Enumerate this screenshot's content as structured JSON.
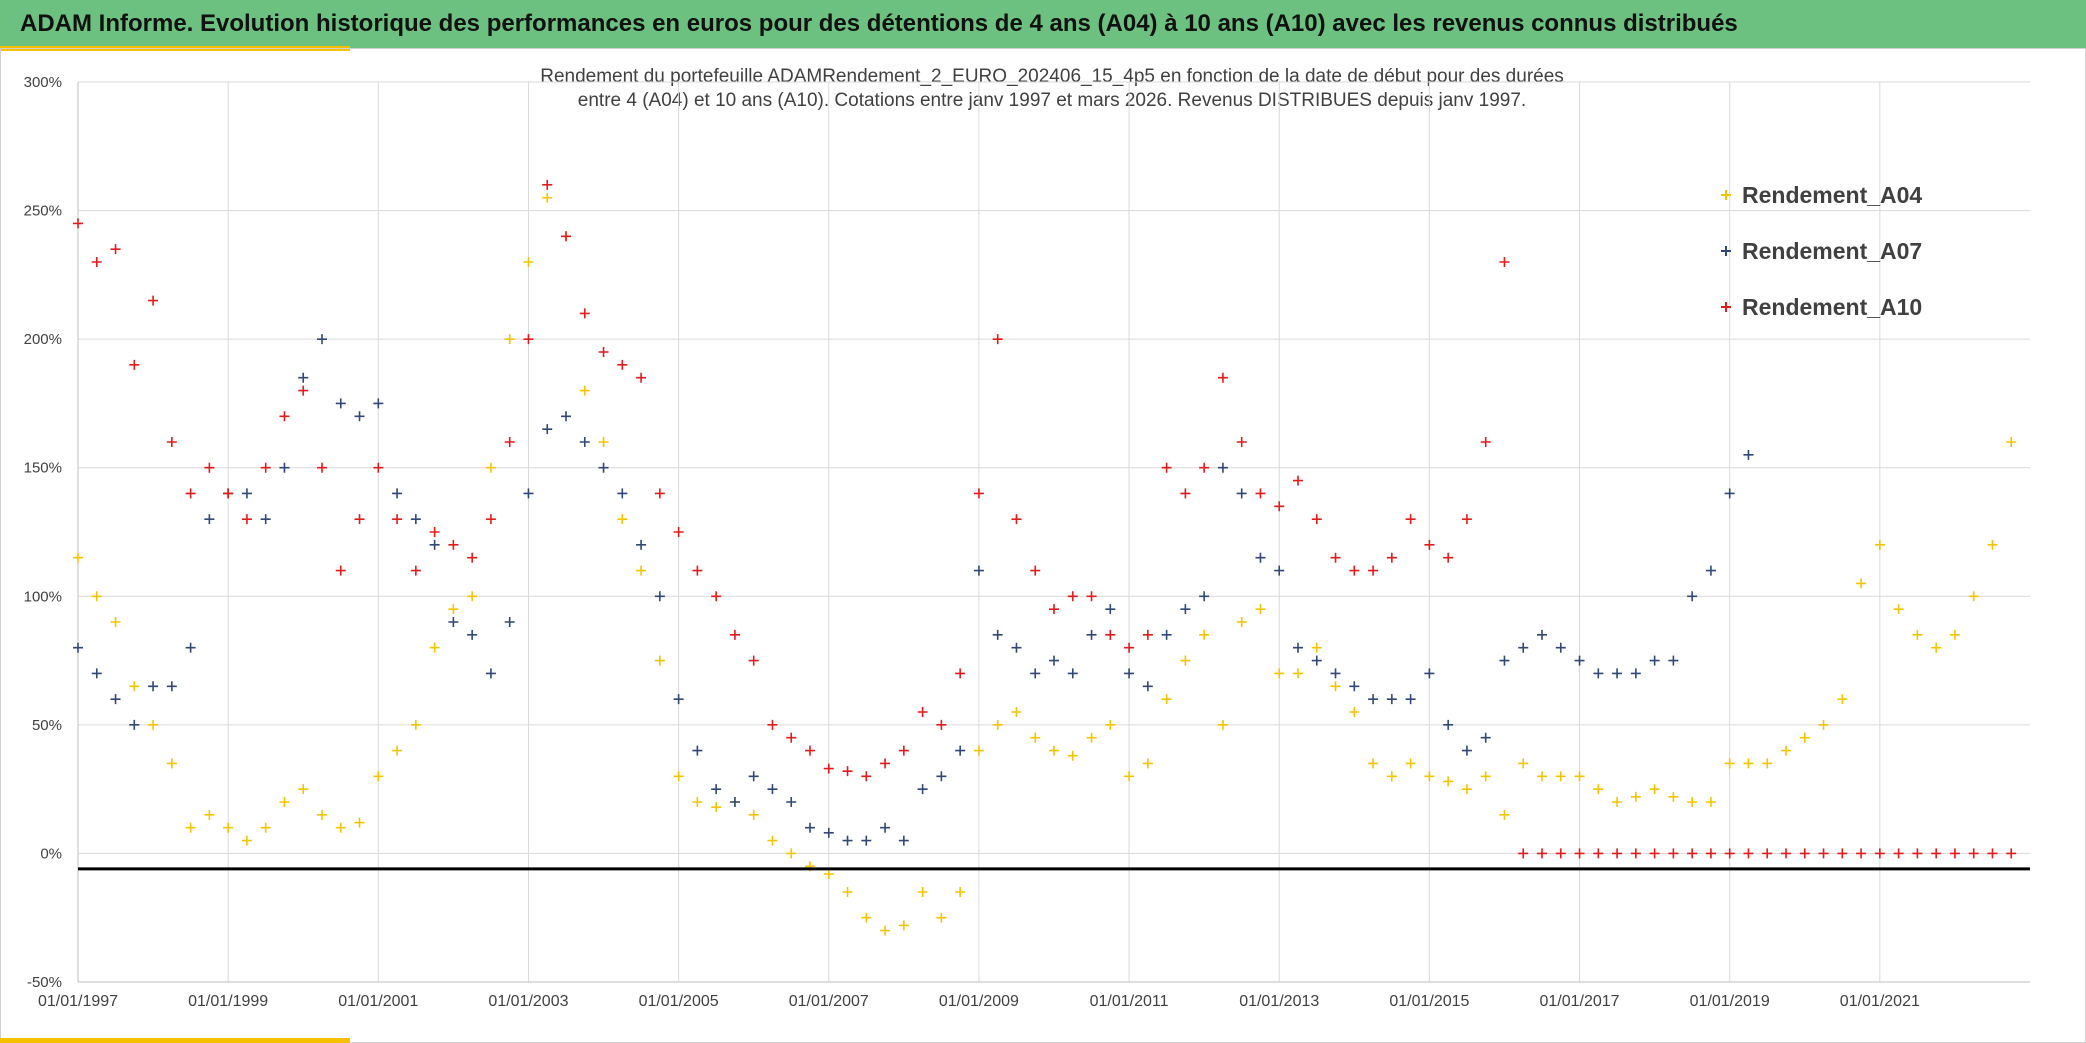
{
  "header": {
    "title": "ADAM Informe. Evolution historique des performances en euros pour des détentions de 4 ans (A04) à 10 ans (A10) avec les revenus connus distribués"
  },
  "colors": {
    "banner": "#6cc080",
    "accent": "#f5c000",
    "a04": "#f5c400",
    "a07": "#2f4877",
    "a10": "#e31b1b",
    "grid": "#d9d9d9",
    "text": "#404040"
  },
  "chart_data": {
    "type": "scatter",
    "title_line1": "Rendement du portefeuille ADAMRendement_2_EURO_202406_15_4p5  en fonction de la date de début pour des durées",
    "title_line2": "entre 4 (A04) et 10 ans (A10). Cotations entre janv 1997 et mars 2026. Revenus DISTRIBUES depuis janv 1997.",
    "xlabel": "",
    "ylabel": "",
    "xlim": [
      1997.0,
      2023.0
    ],
    "ylim": [
      -50,
      300
    ],
    "y_ticks": [
      -50,
      0,
      50,
      100,
      150,
      200,
      250,
      300
    ],
    "y_tick_labels": [
      "-50%",
      "0%",
      "50%",
      "100%",
      "150%",
      "200%",
      "250%",
      "300%"
    ],
    "x_ticks": [
      1997,
      1999,
      2001,
      2003,
      2005,
      2007,
      2009,
      2011,
      2013,
      2015,
      2017,
      2019,
      2021
    ],
    "x_tick_labels": [
      "01/01/1997",
      "01/01/1999",
      "01/01/2001",
      "01/01/2003",
      "01/01/2005",
      "01/01/2007",
      "01/01/2009",
      "01/01/2011",
      "01/01/2013",
      "01/01/2015",
      "01/01/2017",
      "01/01/2019",
      "01/01/2021"
    ],
    "reference_line": -6,
    "legend_position": "top-right",
    "marker": "+",
    "series": [
      {
        "name": "Rendement_A04",
        "x": [
          1997.0,
          1997.25,
          1997.5,
          1997.75,
          1998.0,
          1998.25,
          1998.5,
          1998.75,
          1999.0,
          1999.25,
          1999.5,
          1999.75,
          2000.0,
          2000.25,
          2000.5,
          2000.75,
          2001.0,
          2001.25,
          2001.5,
          2001.75,
          2002.0,
          2002.25,
          2002.5,
          2002.75,
          2003.0,
          2003.25,
          2003.5,
          2003.75,
          2004.0,
          2004.25,
          2004.5,
          2004.75,
          2005.0,
          2005.25,
          2005.5,
          2005.75,
          2006.0,
          2006.25,
          2006.5,
          2006.75,
          2007.0,
          2007.25,
          2007.5,
          2007.75,
          2008.0,
          2008.25,
          2008.5,
          2008.75,
          2009.0,
          2009.25,
          2009.5,
          2009.75,
          2010.0,
          2010.25,
          2010.5,
          2010.75,
          2011.0,
          2011.25,
          2011.5,
          2011.75,
          2012.0,
          2012.25,
          2012.5,
          2012.75,
          2013.0,
          2013.25,
          2013.5,
          2013.75,
          2014.0,
          2014.25,
          2014.5,
          2014.75,
          2015.0,
          2015.25,
          2015.5,
          2015.75,
          2016.0,
          2016.25,
          2016.5,
          2016.75,
          2017.0,
          2017.25,
          2017.5,
          2017.75,
          2018.0,
          2018.25,
          2018.5,
          2018.75,
          2019.0,
          2019.25,
          2019.5,
          2019.75,
          2020.0,
          2020.25,
          2020.5,
          2020.75,
          2021.0,
          2021.25,
          2021.5,
          2021.75,
          2022.0,
          2022.25,
          2022.5,
          2022.75
        ],
        "values": [
          115,
          100,
          90,
          65,
          50,
          35,
          10,
          15,
          10,
          5,
          10,
          20,
          25,
          15,
          10,
          12,
          30,
          40,
          50,
          80,
          95,
          100,
          150,
          200,
          230,
          255,
          240,
          180,
          160,
          130,
          110,
          75,
          30,
          20,
          18,
          20,
          15,
          5,
          0,
          -5,
          -8,
          -15,
          -25,
          -30,
          -28,
          -15,
          -25,
          -15,
          40,
          50,
          55,
          45,
          40,
          38,
          45,
          50,
          30,
          35,
          60,
          75,
          85,
          50,
          90,
          95,
          70,
          70,
          80,
          65,
          55,
          35,
          30,
          35,
          30,
          28,
          25,
          30,
          15,
          35,
          30,
          30,
          30,
          25,
          20,
          22,
          25,
          22,
          20,
          20,
          35,
          35,
          35,
          40,
          45,
          50,
          60,
          105,
          120,
          95,
          85,
          80,
          85,
          100,
          120,
          160
        ]
      },
      {
        "name": "Rendement_A07",
        "x": [
          1997.0,
          1997.25,
          1997.5,
          1997.75,
          1998.0,
          1998.25,
          1998.5,
          1998.75,
          1999.0,
          1999.25,
          1999.5,
          1999.75,
          2000.0,
          2000.25,
          2000.5,
          2000.75,
          2001.0,
          2001.25,
          2001.5,
          2001.75,
          2002.0,
          2002.25,
          2002.5,
          2002.75,
          2003.0,
          2003.25,
          2003.5,
          2003.75,
          2004.0,
          2004.25,
          2004.5,
          2004.75,
          2005.0,
          2005.25,
          2005.5,
          2005.75,
          2006.0,
          2006.25,
          2006.5,
          2006.75,
          2007.0,
          2007.25,
          2007.5,
          2007.75,
          2008.0,
          2008.25,
          2008.5,
          2008.75,
          2009.0,
          2009.25,
          2009.5,
          2009.75,
          2010.0,
          2010.25,
          2010.5,
          2010.75,
          2011.0,
          2011.25,
          2011.5,
          2011.75,
          2012.0,
          2012.25,
          2012.5,
          2012.75,
          2013.0,
          2013.25,
          2013.5,
          2013.75,
          2014.0,
          2014.25,
          2014.5,
          2014.75,
          2015.0,
          2015.25,
          2015.5,
          2015.75,
          2016.0,
          2016.25,
          2016.5,
          2016.75,
          2017.0,
          2017.25,
          2017.5,
          2017.75,
          2018.0,
          2018.25,
          2018.5,
          2018.75,
          2019.0,
          2019.25
        ],
        "values": [
          80,
          70,
          60,
          50,
          65,
          65,
          80,
          130,
          140,
          140,
          130,
          150,
          185,
          200,
          175,
          170,
          175,
          140,
          130,
          120,
          90,
          85,
          70,
          90,
          140,
          165,
          170,
          160,
          150,
          140,
          120,
          100,
          60,
          40,
          25,
          20,
          30,
          25,
          20,
          10,
          8,
          5,
          5,
          10,
          5,
          25,
          30,
          40,
          110,
          85,
          80,
          70,
          75,
          70,
          85,
          95,
          70,
          65,
          85,
          95,
          100,
          150,
          140,
          115,
          110,
          80,
          75,
          70,
          65,
          60,
          60,
          60,
          70,
          50,
          40,
          45,
          75,
          80,
          85,
          80,
          75,
          70,
          70,
          70,
          75,
          75,
          100,
          110,
          140,
          155
        ]
      },
      {
        "name": "Rendement_A10",
        "x": [
          1997.0,
          1997.25,
          1997.5,
          1997.75,
          1998.0,
          1998.25,
          1998.5,
          1998.75,
          1999.0,
          1999.25,
          1999.5,
          1999.75,
          2000.0,
          2000.25,
          2000.5,
          2000.75,
          2001.0,
          2001.25,
          2001.5,
          2001.75,
          2002.0,
          2002.25,
          2002.5,
          2002.75,
          2003.0,
          2003.25,
          2003.5,
          2003.75,
          2004.0,
          2004.25,
          2004.5,
          2004.75,
          2005.0,
          2005.25,
          2005.5,
          2005.75,
          2006.0,
          2006.25,
          2006.5,
          2006.75,
          2007.0,
          2007.25,
          2007.5,
          2007.75,
          2008.0,
          2008.25,
          2008.5,
          2008.75,
          2009.0,
          2009.25,
          2009.5,
          2009.75,
          2010.0,
          2010.25,
          2010.5,
          2010.75,
          2011.0,
          2011.25,
          2011.5,
          2011.75,
          2012.0,
          2012.25,
          2012.5,
          2012.75,
          2013.0,
          2013.25,
          2013.5,
          2013.75,
          2014.0,
          2014.25,
          2014.5,
          2014.75,
          2015.0,
          2015.25,
          2015.5,
          2015.75,
          2016.0,
          2016.25,
          2016.5,
          2016.75,
          2017.0,
          2017.25,
          2017.5,
          2017.75,
          2018.0,
          2018.25,
          2018.5,
          2018.75,
          2019.0,
          2019.25,
          2019.5,
          2019.75,
          2020.0,
          2020.25,
          2020.5,
          2020.75,
          2021.0,
          2021.25,
          2021.5,
          2021.75,
          2022.0,
          2022.25,
          2022.5,
          2022.75
        ],
        "values": [
          245,
          230,
          235,
          190,
          215,
          160,
          140,
          150,
          140,
          130,
          150,
          170,
          180,
          150,
          110,
          130,
          150,
          130,
          110,
          125,
          120,
          115,
          130,
          160,
          200,
          260,
          240,
          210,
          195,
          190,
          185,
          140,
          125,
          110,
          100,
          85,
          75,
          50,
          45,
          40,
          33,
          32,
          30,
          35,
          40,
          55,
          50,
          70,
          140,
          200,
          130,
          110,
          95,
          100,
          100,
          85,
          80,
          85,
          150,
          140,
          150,
          185,
          160,
          140,
          135,
          145,
          130,
          115,
          110,
          110,
          115,
          130,
          120,
          115,
          130,
          160,
          230,
          0,
          0,
          0,
          0,
          0,
          0,
          0,
          0,
          0,
          0,
          0,
          0,
          0,
          0,
          0,
          0,
          0,
          0,
          0,
          0,
          0,
          0,
          0,
          0,
          0,
          0,
          0
        ]
      }
    ]
  }
}
